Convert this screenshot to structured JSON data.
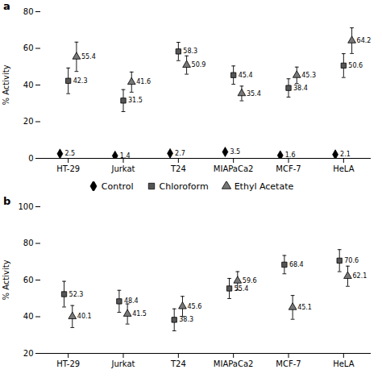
{
  "chart_data": [
    {
      "type": "scatter",
      "title": "a",
      "categories": [
        "HT-29",
        "Jurkat",
        "T24",
        "MIAPaCa2",
        "MCF-7",
        "HeLA"
      ],
      "series": [
        {
          "name": "Control",
          "color": "black",
          "marker": "diamond",
          "values": [
            2.5,
            1.4,
            2.7,
            3.5,
            1.6,
            2.1
          ],
          "yerr": [
            0.3,
            0.2,
            0.3,
            0.4,
            0.2,
            0.2
          ]
        },
        {
          "name": "Chloroform",
          "color": "#555555",
          "marker": "square",
          "values": [
            42.3,
            31.5,
            58.3,
            45.4,
            38.4,
            50.6
          ],
          "yerr": [
            7.0,
            6.0,
            5.0,
            5.0,
            5.0,
            6.5
          ]
        },
        {
          "name": "Ethyl Acetate",
          "color": "#777777",
          "marker": "triangle",
          "values": [
            55.4,
            41.6,
            50.9,
            35.4,
            45.3,
            64.2
          ],
          "yerr": [
            8.0,
            5.5,
            5.0,
            4.0,
            4.5,
            7.0
          ]
        }
      ],
      "ylabel": "% Activity",
      "ylim": [
        0,
        80
      ],
      "yticks": [
        0,
        20,
        40,
        60,
        80
      ],
      "data_labels": true,
      "grid": false,
      "legend": "bottom"
    },
    {
      "type": "scatter",
      "title": "b",
      "categories": [
        "HT-29",
        "Jurkat",
        "T24",
        "MIAPaCa2",
        "MCF-7",
        "HeLA"
      ],
      "series": [
        {
          "name": "Chloroform",
          "color": "#555555",
          "marker": "square",
          "values": [
            52.3,
            48.4,
            38.3,
            55.4,
            68.4,
            70.6
          ],
          "yerr": [
            7.0,
            6.0,
            6.0,
            5.5,
            5.0,
            6.0
          ]
        },
        {
          "name": "Ethyl Acetate",
          "color": "#777777",
          "marker": "triangle",
          "values": [
            40.1,
            41.5,
            45.6,
            59.6,
            45.1,
            62.1
          ],
          "yerr": [
            6.0,
            5.5,
            5.5,
            5.0,
            6.5,
            5.5
          ]
        }
      ],
      "ylabel": "% Activity",
      "ylim": [
        20,
        100
      ],
      "yticks": [
        20,
        40,
        60,
        80,
        100
      ],
      "data_labels": true,
      "grid": false
    }
  ]
}
